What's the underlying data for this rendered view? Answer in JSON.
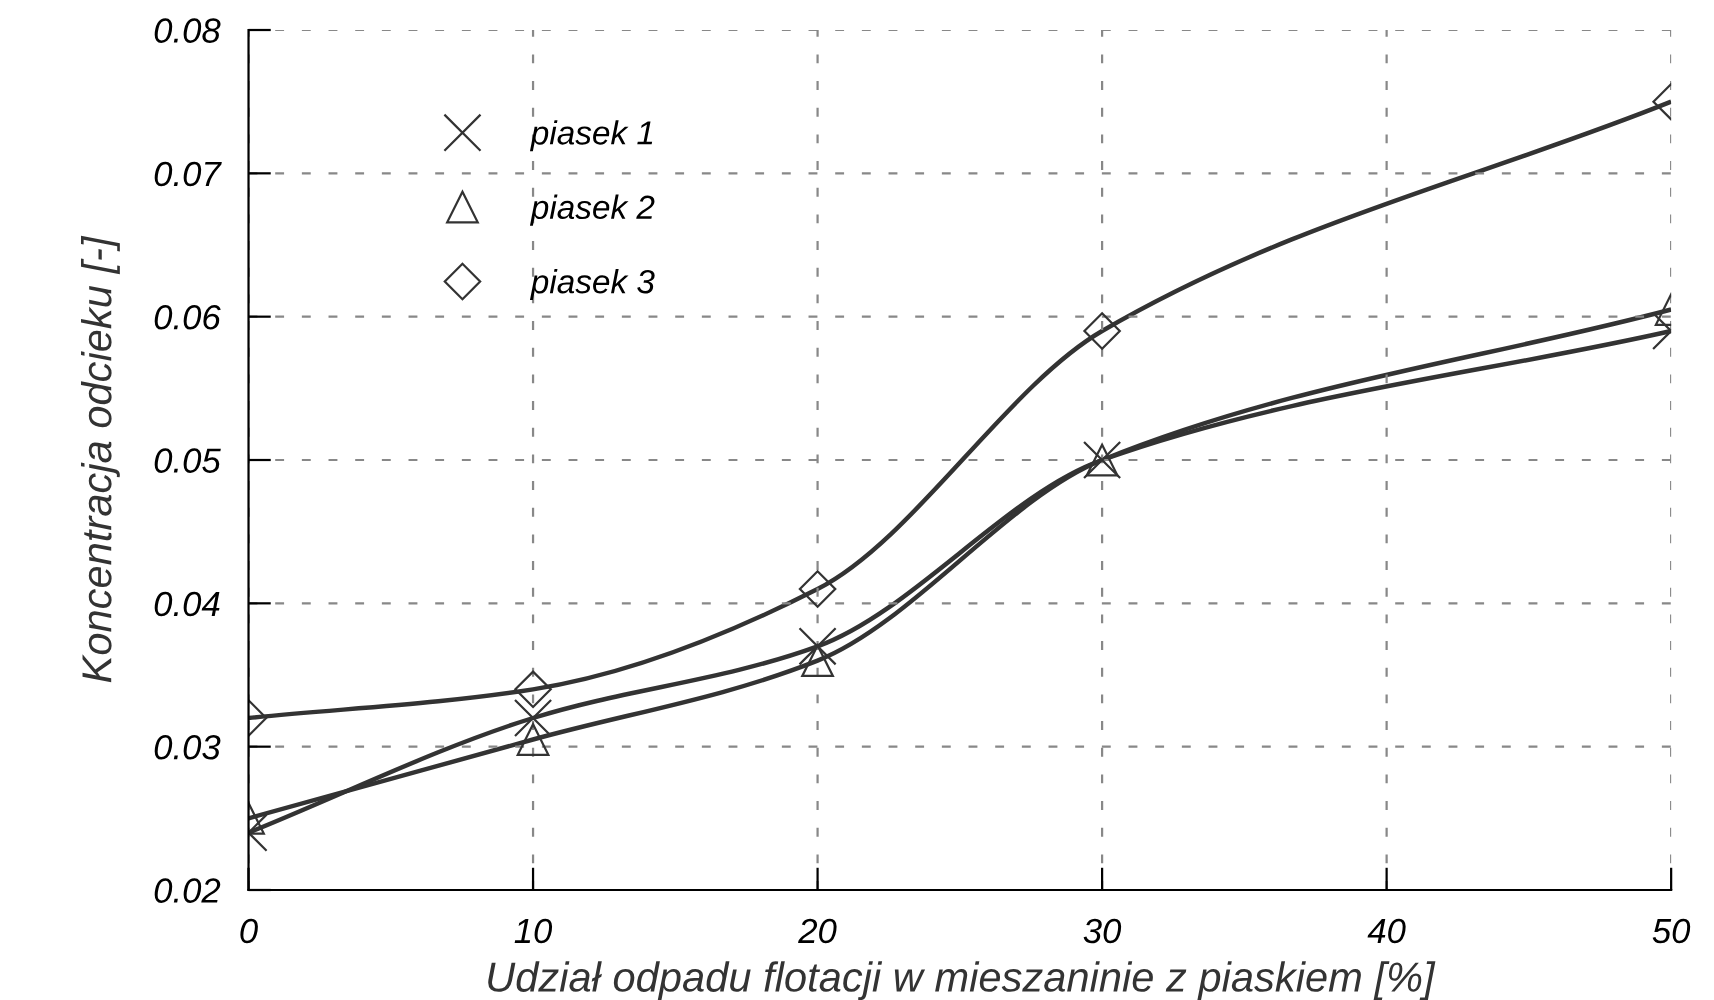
{
  "chart_data": {
    "type": "line",
    "xlabel": "Udział odpadu flotacji w mieszaninie z piaskiem [%]",
    "ylabel": "Koncentracja odcieku [-]",
    "x": [
      0,
      10,
      20,
      30,
      50
    ],
    "series": [
      {
        "name": "piasek 1",
        "color": "#333333",
        "marker": "cross",
        "values": [
          0.024,
          0.032,
          0.037,
          0.05,
          0.059
        ]
      },
      {
        "name": "piasek 2",
        "color": "#333333",
        "marker": "triangle",
        "values": [
          0.025,
          0.0305,
          0.036,
          0.05,
          0.0605
        ]
      },
      {
        "name": "piasek 3",
        "color": "#333333",
        "marker": "diamond",
        "values": [
          0.032,
          0.034,
          0.041,
          0.059,
          0.075
        ]
      }
    ],
    "xlim": [
      0,
      50
    ],
    "xticks": [
      0,
      10,
      20,
      30,
      40,
      50
    ],
    "ylim": [
      0.02,
      0.08
    ],
    "yticks": [
      0.02,
      0.03,
      0.04,
      0.05,
      0.06,
      0.07,
      0.08
    ],
    "grid": true,
    "legend": "top left",
    "line_style": "solid"
  }
}
